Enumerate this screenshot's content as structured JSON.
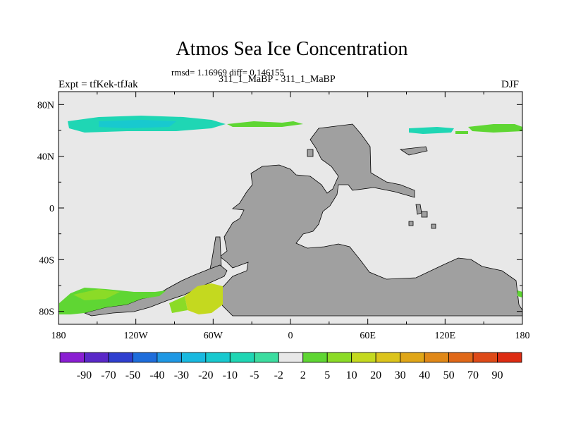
{
  "chart_data": {
    "type": "map",
    "title": "Atmos Sea Ice Concentration",
    "stats": "rmsd= 1.16969 diff= 0.146155",
    "runs": "311_1_MaBP - 311_1_MaBP",
    "expt": "Expt = tfKek-tfJak",
    "season": "DJF",
    "xlim": [
      -180,
      180
    ],
    "ylim": [
      -90,
      90
    ],
    "lat_ticks": [
      "80N",
      "40N",
      "0",
      "40S",
      "80S"
    ],
    "lat_values": [
      80,
      40,
      0,
      -40,
      -80
    ],
    "lon_ticks": [
      "180",
      "120W",
      "60W",
      "0",
      "60E",
      "120E",
      "180"
    ],
    "lon_values": [
      -180,
      -120,
      -60,
      0,
      60,
      120,
      180
    ],
    "ocean_color": "#e8e8e8",
    "land_color": "#a0a0a0",
    "colorbar": {
      "levels": [
        "-90",
        "-70",
        "-50",
        "-40",
        "-30",
        "-20",
        "-10",
        "-5",
        "-2",
        "2",
        "5",
        "10",
        "20",
        "30",
        "40",
        "50",
        "70",
        "90"
      ],
      "colors": [
        "#8a1ed2",
        "#5a28c8",
        "#2f3fcf",
        "#1e6ddb",
        "#1f98e4",
        "#19b9e0",
        "#18c9cf",
        "#1fd6b4",
        "#3cdda0",
        "#e8e8e8",
        "#5fd633",
        "#8bdb27",
        "#c4d91f",
        "#dcc41c",
        "#e0a618",
        "#e08818",
        "#e06818",
        "#de4a18",
        "#dd2c12"
      ]
    }
  }
}
